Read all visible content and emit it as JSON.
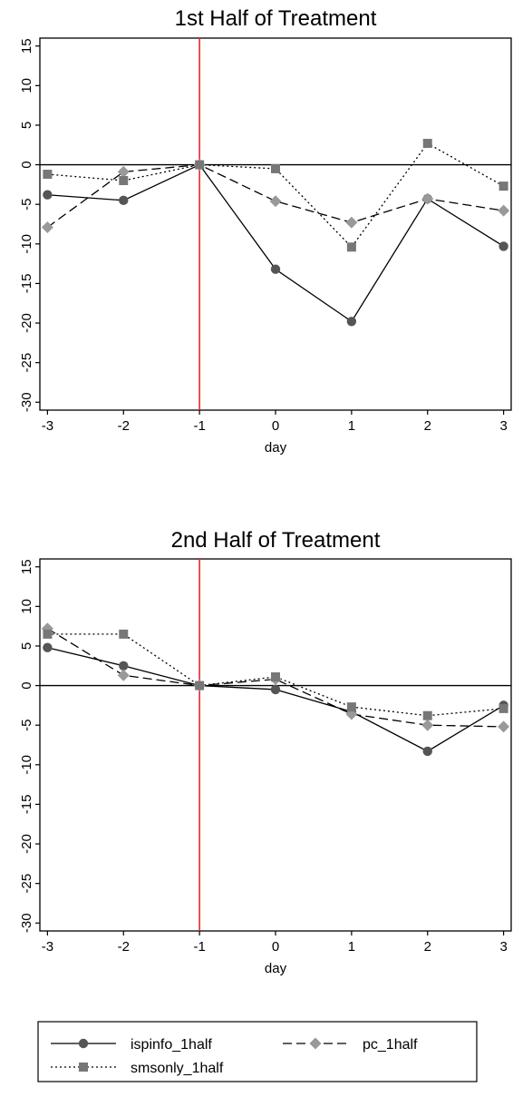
{
  "chart_data": [
    {
      "type": "line",
      "title": "1st Half of Treatment",
      "xlabel": "day",
      "ylabel": "",
      "x": [
        -3,
        -2,
        -1,
        0,
        1,
        2,
        3
      ],
      "x_tick_labels": [
        "-3",
        "-2",
        "-1",
        "0",
        "1",
        "2",
        "3"
      ],
      "y_tick_labels": [
        "15",
        "10",
        "5",
        "0",
        "-5",
        "-10",
        "-15",
        "-20",
        "-25",
        "-30"
      ],
      "xlim": [
        -3.1,
        3.1
      ],
      "ylim": [
        -31,
        16
      ],
      "grid": false,
      "reference_lines": [
        {
          "axis": "x",
          "value": -1,
          "color": "#e8262b"
        },
        {
          "axis": "y",
          "value": 0,
          "color": "#000000"
        }
      ],
      "series": [
        {
          "name": "ispinfo_1half",
          "values": [
            -3.8,
            -4.5,
            0,
            -13.2,
            -19.8,
            -4.3,
            -10.3
          ]
        },
        {
          "name": "pc_1half",
          "values": [
            -7.9,
            -0.9,
            0,
            -4.6,
            -7.3,
            -4.3,
            -5.8
          ]
        },
        {
          "name": "smsonly_1half",
          "values": [
            -1.2,
            -2.0,
            0,
            -0.5,
            -10.4,
            2.7,
            -2.7
          ]
        }
      ]
    },
    {
      "type": "line",
      "title": "2nd Half of Treatment",
      "xlabel": "day",
      "ylabel": "",
      "x": [
        -3,
        -2,
        -1,
        0,
        1,
        2,
        3
      ],
      "x_tick_labels": [
        "-3",
        "-2",
        "-1",
        "0",
        "1",
        "2",
        "3"
      ],
      "y_tick_labels": [
        "15",
        "10",
        "5",
        "0",
        "-5",
        "-10",
        "-15",
        "-20",
        "-25",
        "-30"
      ],
      "xlim": [
        -3.1,
        3.1
      ],
      "ylim": [
        -31,
        16
      ],
      "grid": false,
      "reference_lines": [
        {
          "axis": "x",
          "value": -1,
          "color": "#e8262b"
        },
        {
          "axis": "y",
          "value": 0,
          "color": "#000000"
        }
      ],
      "series": [
        {
          "name": "ispinfo_1half",
          "values": [
            4.8,
            2.5,
            0,
            -0.5,
            -3.3,
            -8.3,
            -2.5
          ]
        },
        {
          "name": "pc_1half",
          "values": [
            7.2,
            1.3,
            0,
            0.8,
            -3.6,
            -5.0,
            -5.2
          ]
        },
        {
          "name": "smsonly_1half",
          "values": [
            6.5,
            6.5,
            0,
            1.1,
            -2.7,
            -3.8,
            -2.9
          ]
        }
      ]
    }
  ],
  "legend": {
    "placement": "bottom",
    "entries": [
      {
        "label": "ispinfo_1half",
        "marker": "circle",
        "dash": "solid",
        "color": "#555555"
      },
      {
        "label": "pc_1half",
        "marker": "diamond",
        "dash": "dashed",
        "color": "#999999"
      },
      {
        "label": "smsonly_1half",
        "marker": "square",
        "dash": "dotted",
        "color": "#777777"
      }
    ]
  },
  "styles": {
    "series": [
      {
        "marker": "circle",
        "dash": "solid",
        "marker_color": "#555555",
        "line_color": "#000000"
      },
      {
        "marker": "diamond",
        "dash": "dashed",
        "marker_color": "#999999",
        "line_color": "#000000"
      },
      {
        "marker": "square",
        "dash": "dotted",
        "marker_color": "#777777",
        "line_color": "#000000"
      }
    ],
    "vline_color": "#e8262b",
    "axis_color": "#000000"
  }
}
